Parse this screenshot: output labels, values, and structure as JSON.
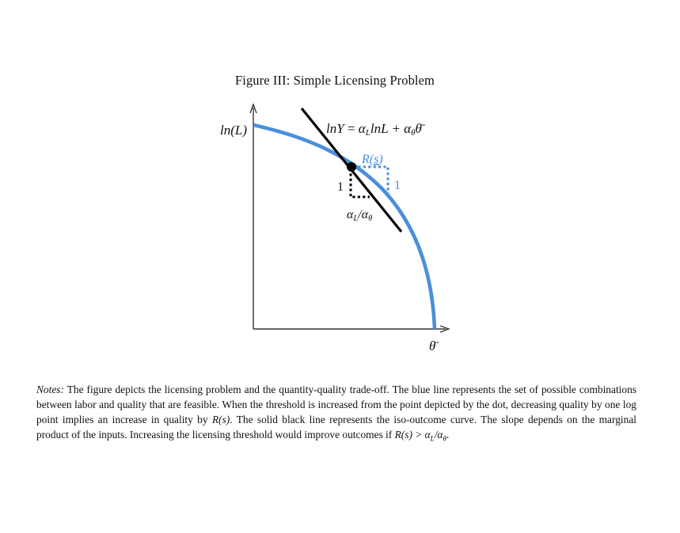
{
  "figure": {
    "title": "Figure III: Simple Licensing Problem",
    "y_axis_label": "ln(L)",
    "x_axis_label": "θ̄",
    "iso_line_label": "lnY = α",
    "iso_line_label_parts": {
      "lhs": "lnY",
      "eq": " = ",
      "alpha1": "α",
      "sub1": "L",
      "mid": "lnL + α",
      "sub2": "θ",
      "theta": "θ̄"
    },
    "r_label": "R(s)",
    "r_label_parts": {
      "R": "R(",
      "s": "s",
      "close": ")"
    },
    "right_step_label": "1",
    "left_step_label": "1",
    "slope_label_parts": {
      "alpha1": "α",
      "sub1": "L",
      "slash": "/α",
      "sub2": "θ"
    },
    "colors": {
      "frontier": "#4A8FDB",
      "iso_line": "#000000",
      "r_label": "#4A8FDB",
      "axes": "#111111"
    }
  },
  "notes": {
    "label": "Notes:",
    "sentence1": " The figure depicts the licensing problem and the quantity-quality trade-off. The blue line represents the set of possible combinations between labor and quality that are feasible. When the threshold is increased from the point depicted by the dot, decreasing quality by one log point implies an increase in quality by ",
    "r1": "R(s)",
    "sentence2": ". The solid black line represents the iso-outcome curve. The slope depends on the marginal product of the inputs. Increasing the licensing threshold would improve outcomes if ",
    "r2": "R(s) > α",
    "sub_l": "L",
    "slash": "/α",
    "sub_theta": "θ",
    "end": "."
  }
}
